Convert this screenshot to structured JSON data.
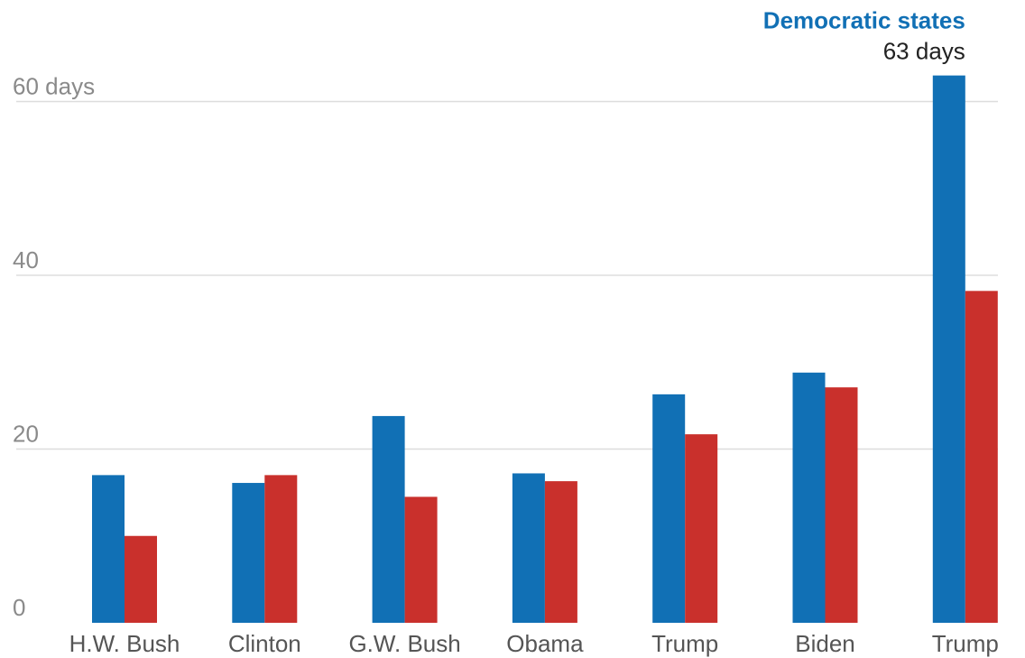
{
  "chart_data": {
    "type": "bar",
    "categories": [
      "H.W. Bush",
      "Clinton",
      "G.W. Bush",
      "Obama",
      "Trump",
      "Biden",
      "Trump"
    ],
    "series": [
      {
        "name": "Democratic states",
        "color": "#1170b5",
        "values": [
          17,
          16.1,
          23.8,
          17.2,
          26.3,
          28.8,
          63
        ]
      },
      {
        "color": "#c9302c",
        "values": [
          10,
          17,
          14.5,
          16.3,
          21.7,
          27.1,
          38.2
        ]
      }
    ],
    "ylim": [
      0,
      66
    ],
    "yticks": [
      {
        "value": 0,
        "label": "0"
      },
      {
        "value": 20,
        "label": "20"
      },
      {
        "value": 40,
        "label": "40"
      },
      {
        "value": 60,
        "label": "60 days"
      }
    ],
    "grid": true,
    "annotation": {
      "title": "Democratic states",
      "value_label": "63 days"
    },
    "xlabel": "",
    "ylabel": ""
  }
}
